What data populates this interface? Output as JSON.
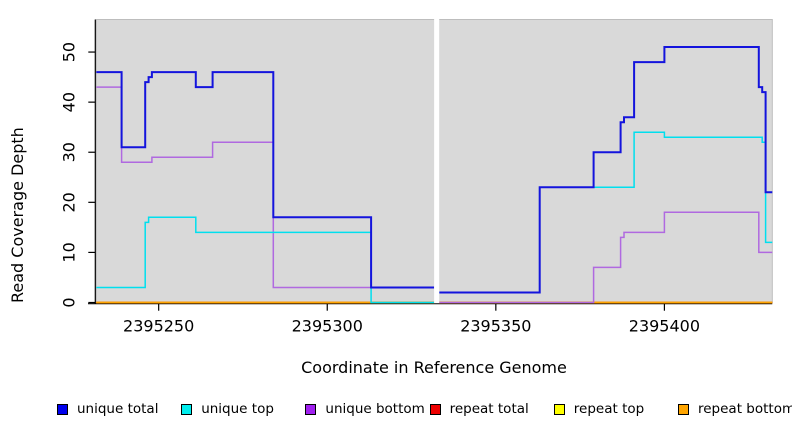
{
  "figure": {
    "xlabel": "Coordinate in Reference Genome",
    "ylabel": "Read Coverage Depth"
  },
  "chart_data": {
    "type": "step-line",
    "title": "",
    "xlabel": "Coordinate in Reference Genome",
    "ylabel": "Read Coverage Depth",
    "xlim": [
      2395231.5,
      2395432
    ],
    "ylim": [
      0,
      56.5
    ],
    "x_ticks": [
      2395250,
      2395300,
      2395350,
      2395400
    ],
    "y_ticks": [
      0,
      10,
      20,
      30,
      40,
      50
    ],
    "plot_bg": "#d9d9d9",
    "plot_border": "#bdbdbd",
    "axis_color": "#000000",
    "grid": "off",
    "legend_position": "bottom",
    "gap": {
      "x_start": 2395331.7,
      "x_end": 2395333.2
    },
    "draw_order": [
      4,
      3,
      5,
      2,
      1,
      0
    ],
    "series": [
      {
        "name": "unique total",
        "line_color": "#1414dd",
        "swatch_color": "#0000ee",
        "width": 2,
        "segments": [
          [
            [
              2395231.5,
              46
            ],
            [
              2395239,
              31
            ],
            [
              2395246,
              44
            ],
            [
              2395247,
              45
            ],
            [
              2395248,
              46
            ],
            [
              2395261,
              43
            ],
            [
              2395266,
              46
            ],
            [
              2395284,
              17
            ],
            [
              2395313,
              3
            ],
            [
              2395331.7,
              3
            ]
          ],
          [
            [
              2395333.2,
              2
            ],
            [
              2395363,
              23
            ],
            [
              2395379,
              30
            ],
            [
              2395387,
              36
            ],
            [
              2395388,
              37
            ],
            [
              2395391,
              48
            ],
            [
              2395400,
              51
            ],
            [
              2395428,
              43
            ],
            [
              2395429,
              42
            ],
            [
              2395430,
              22
            ],
            [
              2395432,
              22
            ]
          ]
        ]
      },
      {
        "name": "unique top",
        "line_color": "#00dfee",
        "swatch_color": "#00eeee",
        "width": 1.5,
        "segments": [
          [
            [
              2395231.5,
              3
            ],
            [
              2395246,
              16
            ],
            [
              2395247,
              17
            ],
            [
              2395261,
              14
            ],
            [
              2395313,
              0
            ],
            [
              2395331.7,
              0
            ]
          ],
          [
            [
              2395333.2,
              2
            ],
            [
              2395363,
              23
            ],
            [
              2395391,
              34
            ],
            [
              2395400,
              33
            ],
            [
              2395429,
              32
            ],
            [
              2395430,
              12
            ],
            [
              2395432,
              12
            ]
          ]
        ]
      },
      {
        "name": "unique bottom",
        "line_color": "#b069e0",
        "swatch_color": "#a020f0",
        "width": 1.5,
        "segments": [
          [
            [
              2395231.5,
              43
            ],
            [
              2395239,
              28
            ],
            [
              2395248,
              29
            ],
            [
              2395266,
              32
            ],
            [
              2395284,
              3
            ],
            [
              2395331.7,
              3
            ]
          ],
          [
            [
              2395333.2,
              0
            ],
            [
              2395379,
              7
            ],
            [
              2395387,
              13
            ],
            [
              2395388,
              14
            ],
            [
              2395400,
              18
            ],
            [
              2395428,
              10
            ],
            [
              2395432,
              10
            ]
          ]
        ]
      },
      {
        "name": "repeat total",
        "line_color": "#dd0000",
        "swatch_color": "#ee0000",
        "width": 1.5,
        "segments": [
          [
            [
              2395231.5,
              0
            ],
            [
              2395331.7,
              0
            ]
          ],
          [
            [
              2395333.2,
              0
            ],
            [
              2395432,
              0
            ]
          ]
        ]
      },
      {
        "name": "repeat top",
        "line_color": "#ffff00",
        "swatch_color": "#ffff00",
        "width": 1.5,
        "segments": [
          [
            [
              2395231.5,
              0
            ],
            [
              2395331.7,
              0
            ]
          ],
          [
            [
              2395333.2,
              0
            ],
            [
              2395432,
              0
            ]
          ]
        ]
      },
      {
        "name": "repeat bottom",
        "line_color": "#ffa500",
        "swatch_color": "#ffa500",
        "width": 1.8,
        "segments": [
          [
            [
              2395231.5,
              0
            ],
            [
              2395331.7,
              0
            ]
          ],
          [
            [
              2395333.2,
              0
            ],
            [
              2395432,
              0
            ]
          ]
        ]
      }
    ]
  }
}
